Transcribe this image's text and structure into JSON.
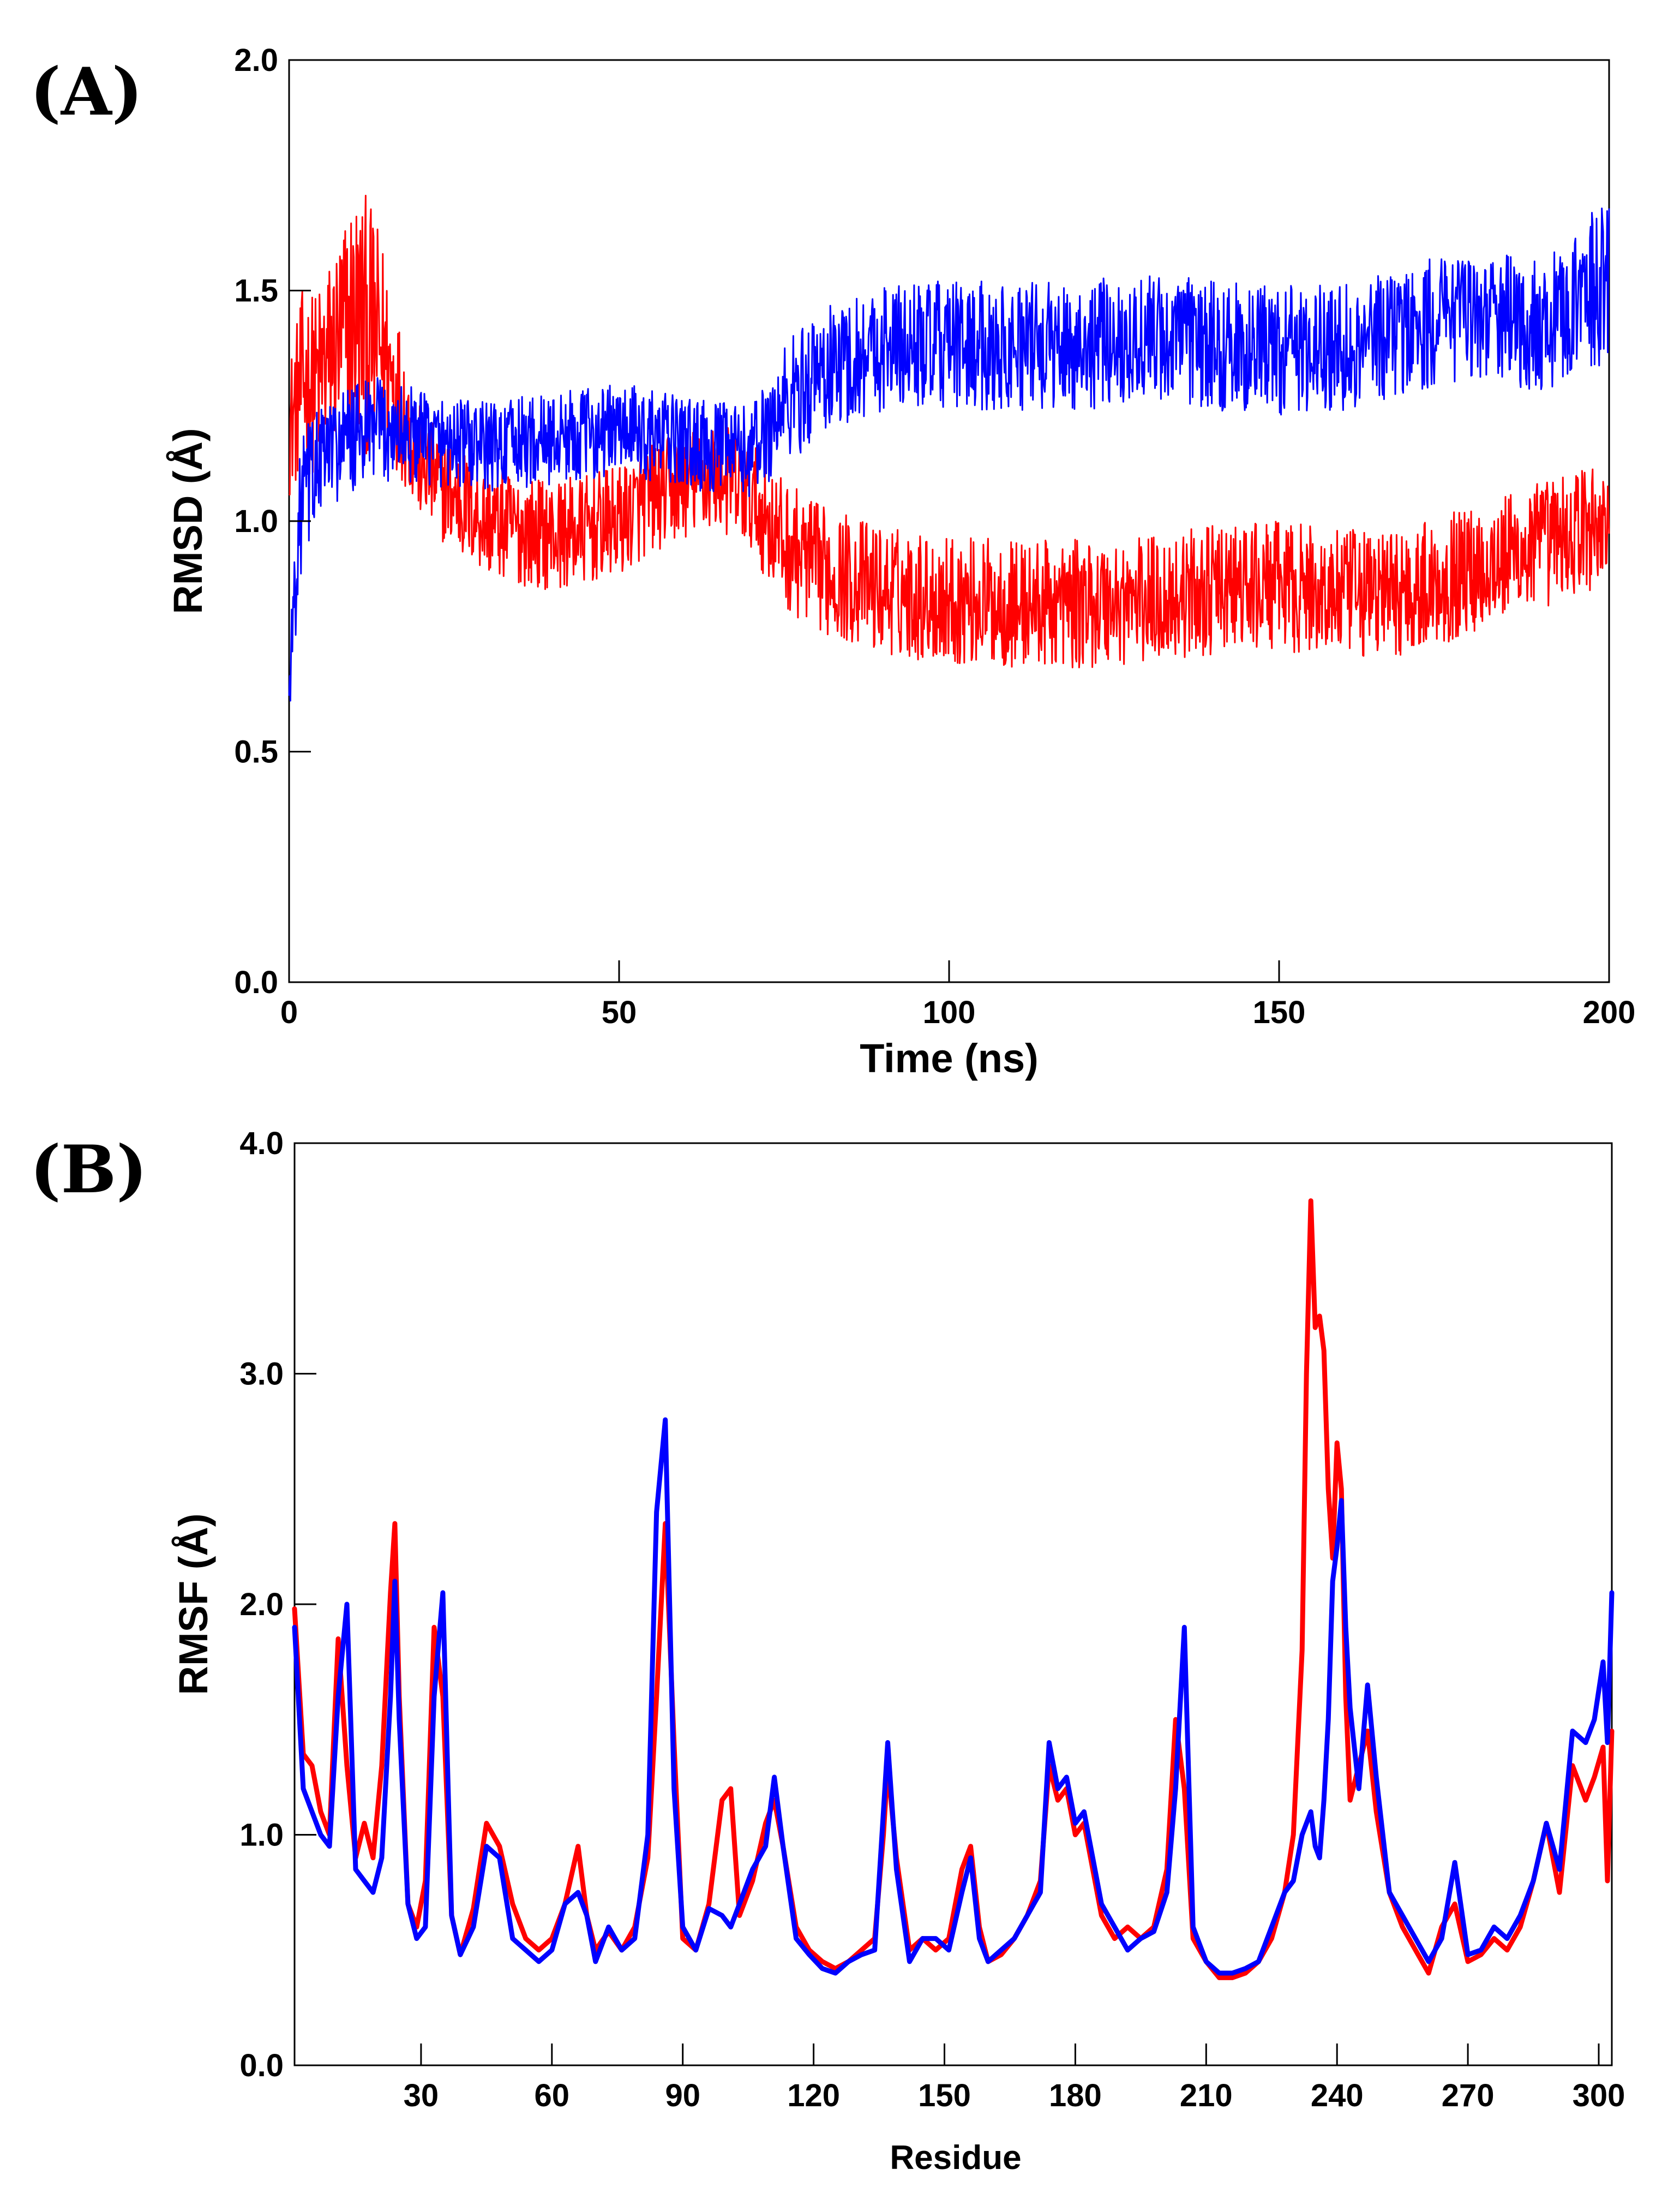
{
  "chart_data": [
    {
      "type": "line",
      "panel_label": "(A)",
      "xlabel": "Time (ns)",
      "ylabel": "RMSD (Å)",
      "xlim": [
        0,
        200
      ],
      "ylim": [
        0,
        2
      ],
      "xticks": [
        "0",
        "50",
        "100",
        "150",
        "200"
      ],
      "yticks": [
        "0.0",
        "0.5",
        "1.0",
        "1.5",
        "2.0"
      ],
      "grid": false,
      "series": [
        {
          "name": "red",
          "color": "#ff0000",
          "x": [
            0,
            2,
            4,
            6,
            8,
            10,
            12,
            14,
            16,
            20,
            25,
            30,
            35,
            40,
            45,
            50,
            55,
            60,
            65,
            70,
            75,
            80,
            90,
            100,
            110,
            120,
            130,
            140,
            150,
            160,
            170,
            180,
            190,
            200
          ],
          "mean": [
            1.2,
            1.3,
            1.3,
            1.35,
            1.4,
            1.45,
            1.42,
            1.38,
            1.3,
            1.12,
            1.05,
            1.0,
            0.98,
            0.97,
            0.98,
            1.0,
            1.05,
            1.08,
            1.1,
            1.05,
            0.95,
            0.9,
            0.85,
            0.83,
            0.82,
            0.82,
            0.83,
            0.85,
            0.86,
            0.84,
            0.85,
            0.9,
            0.95,
            1.0
          ],
          "amp": [
            0.15,
            0.2,
            0.2,
            0.22,
            0.25,
            0.28,
            0.28,
            0.24,
            0.18,
            0.12,
            0.12,
            0.12,
            0.12,
            0.12,
            0.12,
            0.12,
            0.12,
            0.12,
            0.12,
            0.12,
            0.14,
            0.14,
            0.14,
            0.14,
            0.14,
            0.14,
            0.14,
            0.14,
            0.14,
            0.14,
            0.14,
            0.14,
            0.14,
            0.14
          ]
        },
        {
          "name": "blue",
          "color": "#0000ff",
          "x": [
            0,
            1,
            2,
            4,
            6,
            10,
            15,
            20,
            25,
            30,
            40,
            50,
            60,
            70,
            75,
            80,
            85,
            90,
            100,
            110,
            120,
            130,
            140,
            150,
            160,
            170,
            180,
            190,
            195,
            200
          ],
          "mean": [
            0.62,
            0.9,
            1.05,
            1.12,
            1.15,
            1.18,
            1.2,
            1.18,
            1.17,
            1.16,
            1.18,
            1.2,
            1.17,
            1.15,
            1.25,
            1.32,
            1.35,
            1.38,
            1.38,
            1.38,
            1.38,
            1.4,
            1.38,
            1.37,
            1.38,
            1.42,
            1.45,
            1.42,
            1.48,
            1.52
          ],
          "amp": [
            0.05,
            0.15,
            0.15,
            0.12,
            0.12,
            0.12,
            0.12,
            0.1,
            0.1,
            0.1,
            0.1,
            0.1,
            0.1,
            0.1,
            0.14,
            0.14,
            0.14,
            0.14,
            0.14,
            0.14,
            0.14,
            0.14,
            0.14,
            0.14,
            0.14,
            0.14,
            0.14,
            0.14,
            0.16,
            0.18
          ]
        }
      ]
    },
    {
      "type": "line",
      "panel_label": "(B)",
      "xlabel": "Residue",
      "ylabel": "RMSF (Å)",
      "xlim": [
        1,
        303
      ],
      "ylim": [
        0,
        4
      ],
      "xticks": [
        "30",
        "60",
        "90",
        "120",
        "150",
        "180",
        "210",
        "240",
        "270",
        "300"
      ],
      "yticks": [
        "0.0",
        "1.0",
        "2.0",
        "3.0",
        "4.0"
      ],
      "grid": false,
      "series": [
        {
          "name": "red",
          "color": "#ff0000",
          "x": [
            1,
            3,
            5,
            7,
            9,
            11,
            13,
            15,
            17,
            19,
            21,
            23,
            24,
            25,
            27,
            29,
            31,
            33,
            35,
            37,
            39,
            42,
            45,
            48,
            51,
            54,
            57,
            60,
            63,
            66,
            68,
            70,
            73,
            76,
            79,
            82,
            84,
            86,
            88,
            90,
            93,
            96,
            99,
            101,
            103,
            106,
            109,
            111,
            113,
            116,
            119,
            122,
            125,
            128,
            131,
            134,
            136,
            137,
            139,
            142,
            145,
            148,
            151,
            154,
            156,
            158,
            160,
            163,
            166,
            169,
            172,
            174,
            176,
            178,
            180,
            182,
            184,
            186,
            189,
            192,
            195,
            198,
            201,
            203,
            205,
            207,
            210,
            213,
            216,
            219,
            222,
            225,
            228,
            230,
            232,
            233,
            234,
            235,
            236,
            237,
            238,
            239,
            240,
            241,
            242,
            243,
            245,
            247,
            249,
            252,
            255,
            258,
            261,
            264,
            267,
            270,
            273,
            276,
            279,
            282,
            285,
            288,
            291,
            294,
            297,
            299,
            301,
            302,
            303
          ],
          "y": [
            1.98,
            1.35,
            1.3,
            1.1,
            1.0,
            1.85,
            1.3,
            0.9,
            1.05,
            0.9,
            1.3,
            2.05,
            2.35,
            1.6,
            0.7,
            0.6,
            0.8,
            1.9,
            1.6,
            0.65,
            0.48,
            0.68,
            1.05,
            0.95,
            0.7,
            0.55,
            0.5,
            0.55,
            0.7,
            0.95,
            0.65,
            0.5,
            0.58,
            0.5,
            0.6,
            0.9,
            1.6,
            2.35,
            1.4,
            0.55,
            0.5,
            0.7,
            1.15,
            1.2,
            0.65,
            0.8,
            1.05,
            1.15,
            0.95,
            0.6,
            0.5,
            0.45,
            0.42,
            0.45,
            0.5,
            0.55,
            1.0,
            1.3,
            0.9,
            0.5,
            0.55,
            0.5,
            0.55,
            0.85,
            0.95,
            0.6,
            0.45,
            0.48,
            0.55,
            0.65,
            0.8,
            1.3,
            1.15,
            1.2,
            1.0,
            1.05,
            0.85,
            0.65,
            0.55,
            0.6,
            0.55,
            0.6,
            0.85,
            1.5,
            1.2,
            0.55,
            0.45,
            0.38,
            0.38,
            0.4,
            0.45,
            0.55,
            0.75,
            1.0,
            1.8,
            3.0,
            3.75,
            3.2,
            3.25,
            3.1,
            2.5,
            2.2,
            2.7,
            2.5,
            1.6,
            1.15,
            1.3,
            1.45,
            1.1,
            0.75,
            0.6,
            0.5,
            0.4,
            0.6,
            0.7,
            0.45,
            0.48,
            0.55,
            0.5,
            0.6,
            0.8,
            1.05,
            0.75,
            1.3,
            1.15,
            1.25,
            1.38,
            0.8,
            1.45
          ]
        },
        {
          "name": "blue",
          "color": "#0000ff",
          "x": [
            1,
            3,
            5,
            7,
            9,
            11,
            13,
            15,
            17,
            19,
            21,
            23,
            24,
            25,
            27,
            29,
            31,
            33,
            35,
            37,
            39,
            42,
            45,
            48,
            51,
            54,
            57,
            60,
            63,
            66,
            68,
            70,
            73,
            76,
            79,
            82,
            84,
            86,
            88,
            90,
            93,
            96,
            99,
            101,
            103,
            106,
            109,
            111,
            113,
            116,
            119,
            122,
            125,
            128,
            131,
            134,
            136,
            137,
            139,
            142,
            145,
            148,
            151,
            154,
            156,
            158,
            160,
            163,
            166,
            169,
            172,
            174,
            176,
            178,
            180,
            182,
            184,
            186,
            189,
            192,
            195,
            198,
            201,
            203,
            205,
            207,
            210,
            213,
            216,
            219,
            222,
            225,
            228,
            230,
            232,
            233,
            234,
            235,
            236,
            237,
            238,
            239,
            240,
            241,
            242,
            243,
            245,
            247,
            249,
            252,
            255,
            258,
            261,
            264,
            267,
            270,
            273,
            276,
            279,
            282,
            285,
            288,
            291,
            294,
            297,
            299,
            301,
            302,
            303
          ],
          "y": [
            1.9,
            1.2,
            1.1,
            1.0,
            0.95,
            1.6,
            2.0,
            0.85,
            0.8,
            0.75,
            0.9,
            1.6,
            2.1,
            1.5,
            0.7,
            0.55,
            0.6,
            1.6,
            2.05,
            0.65,
            0.48,
            0.6,
            0.95,
            0.9,
            0.55,
            0.5,
            0.45,
            0.5,
            0.7,
            0.75,
            0.65,
            0.45,
            0.6,
            0.5,
            0.55,
            1.0,
            2.4,
            2.8,
            1.2,
            0.6,
            0.5,
            0.68,
            0.65,
            0.6,
            0.7,
            0.85,
            0.95,
            1.25,
            0.95,
            0.55,
            0.48,
            0.42,
            0.4,
            0.45,
            0.48,
            0.5,
            1.1,
            1.4,
            0.85,
            0.45,
            0.55,
            0.55,
            0.5,
            0.75,
            0.9,
            0.55,
            0.45,
            0.5,
            0.55,
            0.65,
            0.75,
            1.4,
            1.2,
            1.25,
            1.05,
            1.1,
            0.9,
            0.7,
            0.6,
            0.5,
            0.55,
            0.58,
            0.75,
            1.2,
            1.9,
            0.6,
            0.45,
            0.4,
            0.4,
            0.42,
            0.45,
            0.6,
            0.75,
            0.8,
            1.0,
            1.05,
            1.1,
            0.95,
            0.9,
            1.15,
            1.5,
            2.1,
            2.25,
            2.45,
            1.9,
            1.55,
            1.2,
            1.65,
            1.25,
            0.75,
            0.65,
            0.55,
            0.45,
            0.55,
            0.88,
            0.48,
            0.5,
            0.6,
            0.55,
            0.65,
            0.8,
            1.05,
            0.85,
            1.45,
            1.4,
            1.5,
            1.75,
            1.4,
            2.05
          ]
        }
      ]
    }
  ]
}
